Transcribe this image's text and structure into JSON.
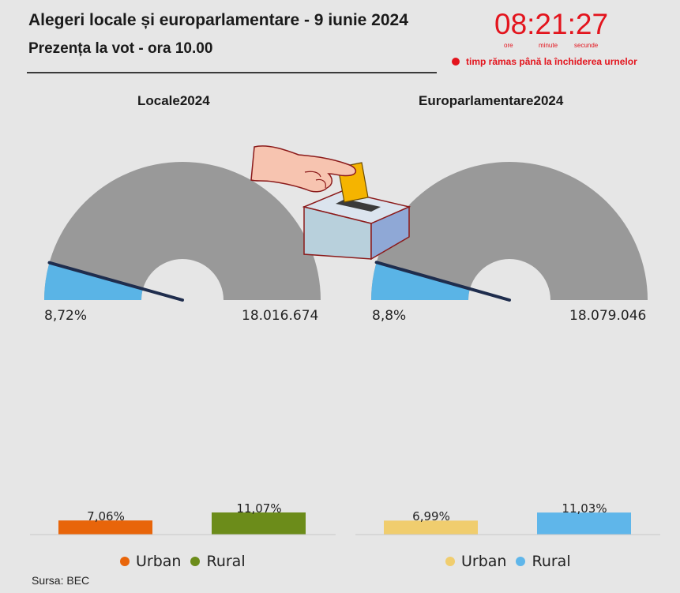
{
  "header": {
    "title": "Alegeri locale și europarlamentare - 9 iunie 2024",
    "subtitle": "Prezența la vot - ora 10.00"
  },
  "countdown": {
    "time": "08:21:27",
    "unit_hours": "ore",
    "unit_minutes": "minute",
    "unit_seconds": "secunde",
    "label": "timp rămas până la închiderea urnelor",
    "color": "#e3141d"
  },
  "colors": {
    "gauge_bg": "#999999",
    "gauge_fill": "#5ab4e6",
    "needle": "#1f2d4d",
    "locale_urban": "#e8650a",
    "locale_rural": "#6c8c1a",
    "euro_urban": "#f0cd6e",
    "euro_rural": "#5fb6ea"
  },
  "illustration": "hand-casting-ballot-into-box",
  "source": "Sursa: BEC",
  "chart_data": [
    {
      "type": "gauge",
      "title": "Locale2024",
      "value": 8.72,
      "value_label": "8,72%",
      "max": 100,
      "max_label": "18.016.674"
    },
    {
      "type": "gauge",
      "title": "Europarlamentare2024",
      "value": 8.8,
      "value_label": "8,8%",
      "max": 100,
      "max_label": "18.079.046"
    },
    {
      "type": "bar",
      "categories": [
        "Urban",
        "Rural"
      ],
      "values": [
        7.06,
        11.07
      ],
      "labels": [
        "7,06%",
        "11,07%"
      ],
      "colors": [
        "#e8650a",
        "#6c8c1a"
      ],
      "ylim": [
        0,
        12
      ]
    },
    {
      "type": "bar",
      "categories": [
        "Urban",
        "Rural"
      ],
      "values": [
        6.99,
        11.03
      ],
      "labels": [
        "6,99%",
        "11,03%"
      ],
      "colors": [
        "#f0cd6e",
        "#5fb6ea"
      ],
      "ylim": [
        0,
        12
      ]
    }
  ]
}
